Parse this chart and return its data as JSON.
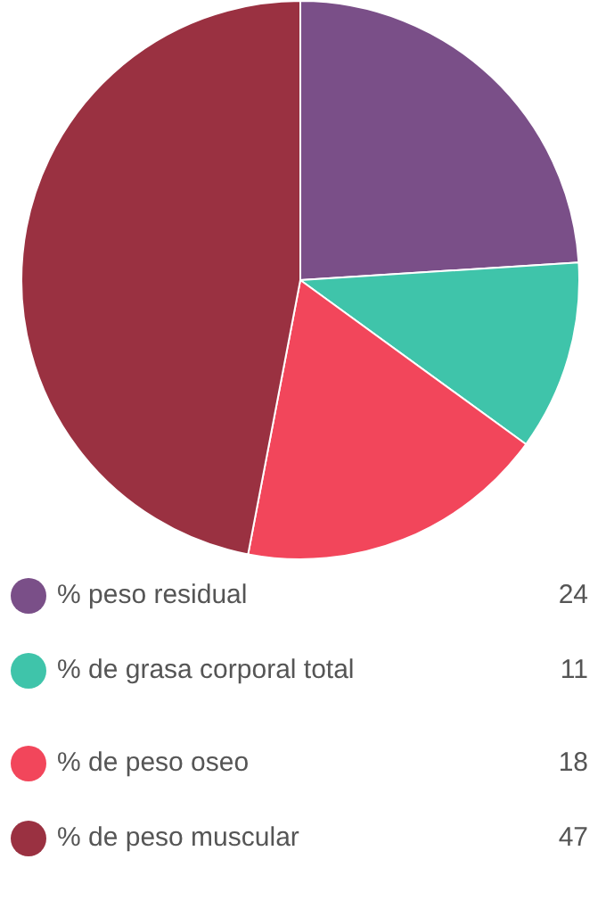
{
  "chart_data": {
    "type": "pie",
    "categories": [
      "% peso residual",
      "% de grasa corporal total",
      "% de peso oseo",
      "% de peso muscular"
    ],
    "values": [
      24,
      11,
      18,
      47
    ],
    "colors": [
      "#7a4f88",
      "#3fc4aa",
      "#f2465b",
      "#9a3141"
    ],
    "legend": "bottom",
    "data_labels": true
  }
}
